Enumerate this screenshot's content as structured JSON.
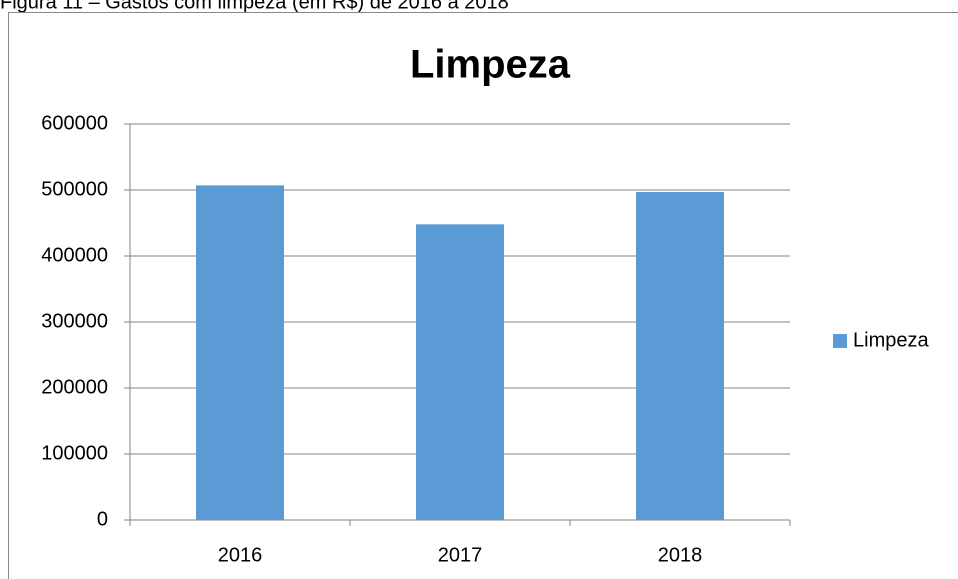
{
  "caption": "Figura 11 – Gastos com limpeza (em R$) de 2016 a 2018",
  "chart_data": {
    "type": "bar",
    "title": "Limpeza",
    "categories": [
      "2016",
      "2017",
      "2018"
    ],
    "series": [
      {
        "name": "Limpeza",
        "color": "#5b9bd5",
        "values": [
          507000,
          448000,
          497000
        ]
      }
    ],
    "ylim": [
      0,
      600000
    ],
    "yticks": [
      0,
      100000,
      200000,
      300000,
      400000,
      500000,
      600000
    ],
    "grid": true,
    "legend": "right"
  }
}
